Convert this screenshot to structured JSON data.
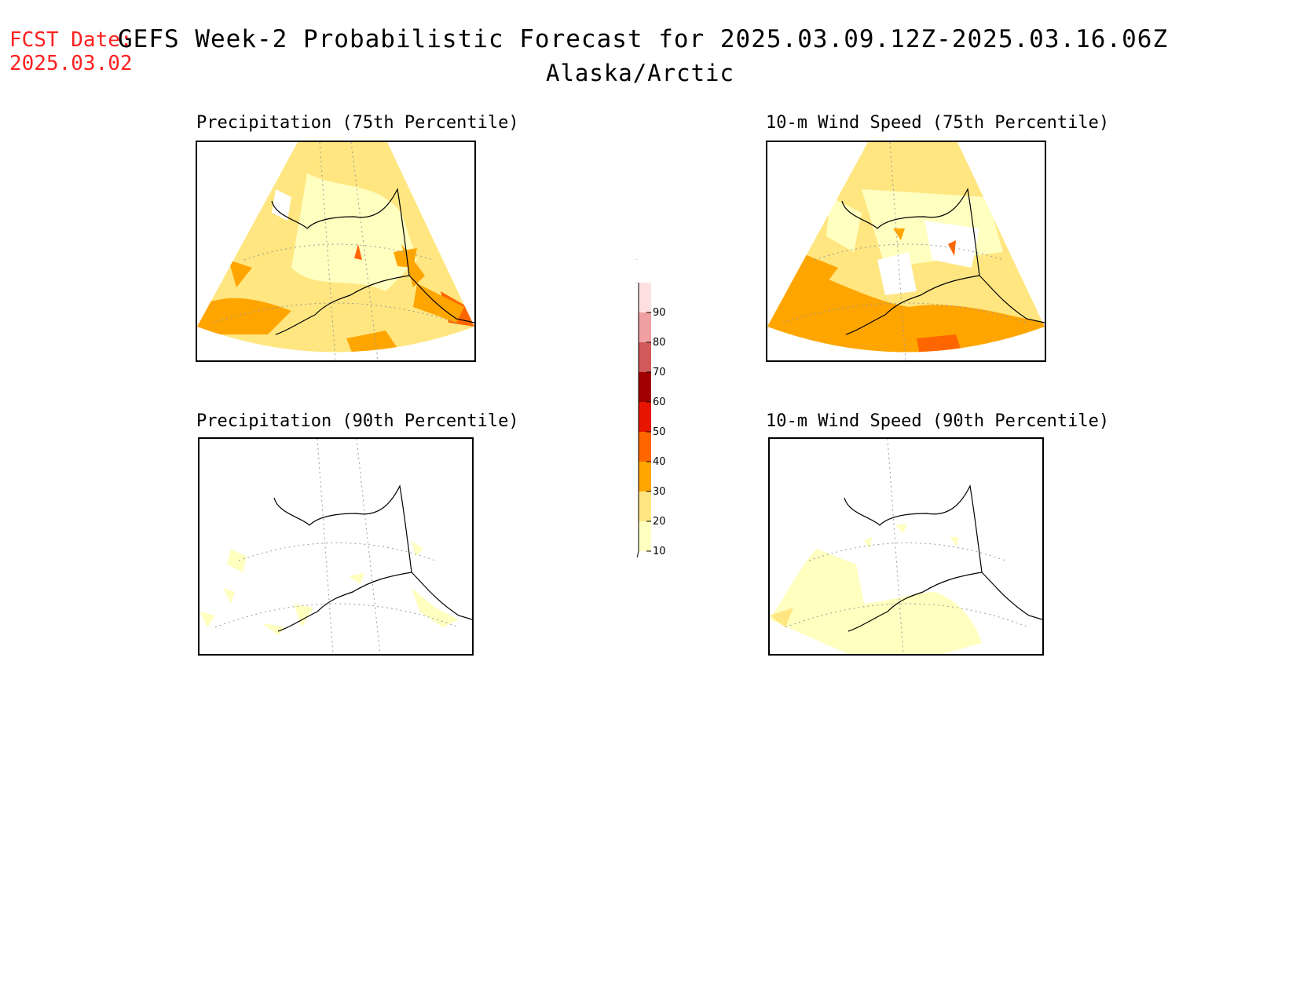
{
  "header": {
    "fcst_label": "FCST Date:",
    "fcst_date": "2025.03.02",
    "title": "GEFS Week-2 Probabilistic Forecast for 2025.03.09.12Z-2025.03.16.06Z",
    "subtitle": "Alaska/Arctic"
  },
  "panels": [
    {
      "title": "Precipitation (75th Percentile)",
      "coverage": "widespread 10-40%"
    },
    {
      "title": "10-m Wind Speed (75th Percentile)",
      "coverage": "widespread 10-50%"
    },
    {
      "title": "Precipitation (90th Percentile)",
      "coverage": "sparse 10-20%"
    },
    {
      "title": "10-m Wind Speed (90th Percentile)",
      "coverage": "southern 10-30%"
    }
  ],
  "colorbar": {
    "levels": [
      "10",
      "20",
      "30",
      "40",
      "50",
      "60",
      "70",
      "80",
      "90"
    ],
    "colors": [
      "#ffffc0",
      "#ffe680",
      "#ffa500",
      "#ff6600",
      "#e61400",
      "#a00000",
      "#d25a5a",
      "#f0a0a0",
      "#ffe0e0"
    ]
  }
}
